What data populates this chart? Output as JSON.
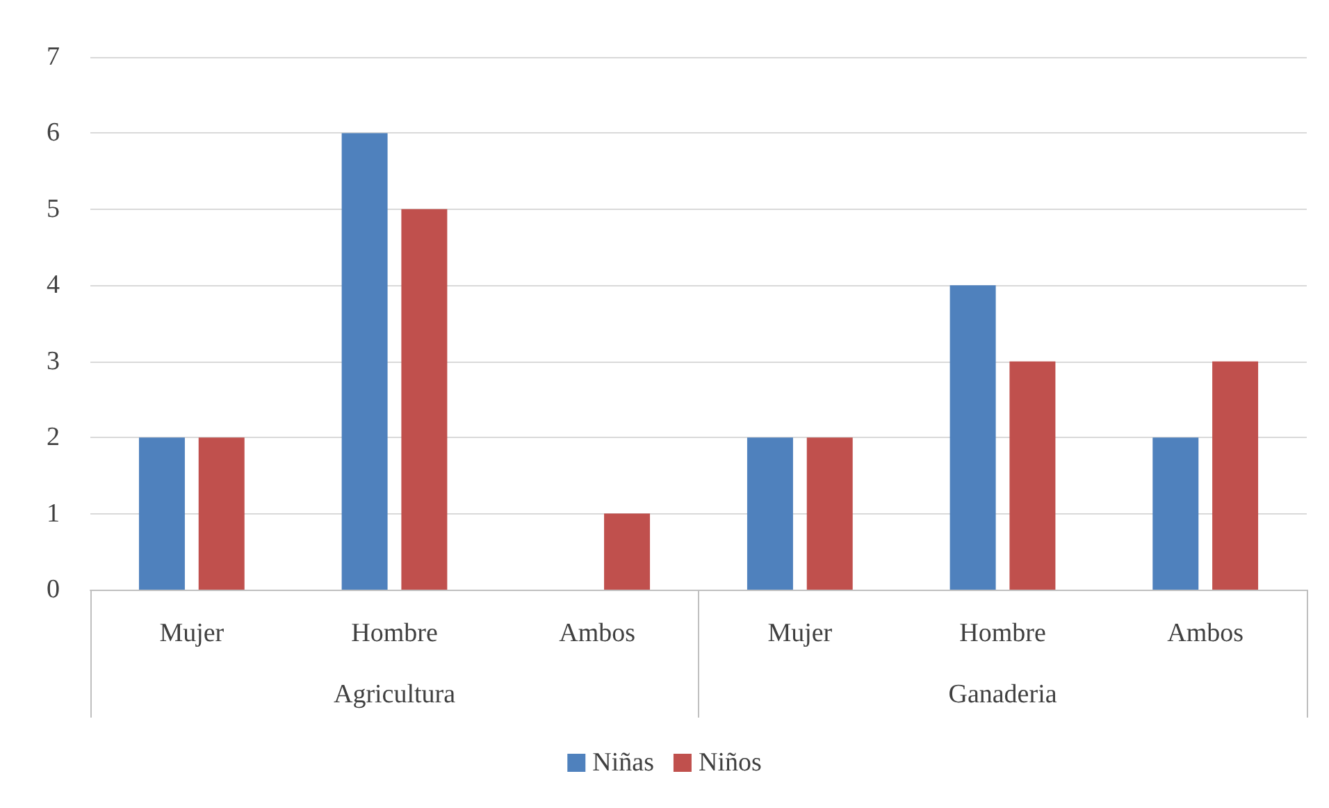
{
  "chart_data": {
    "type": "bar",
    "categories": [
      "Mujer",
      "Hombre",
      "Ambos",
      "Mujer",
      "Hombre",
      "Ambos"
    ],
    "annotations": [
      "Agricultura",
      "Ganaderia"
    ],
    "series": [
      {
        "name": "Niñas",
        "color": "#4f81bd",
        "values": [
          2,
          6,
          0,
          2,
          4,
          2
        ]
      },
      {
        "name": "Niños",
        "color": "#c0504d",
        "values": [
          2,
          5,
          1,
          2,
          3,
          3
        ]
      }
    ],
    "ylim": [
      0,
      7
    ],
    "yticks": [
      0,
      1,
      2,
      3,
      4,
      5,
      6,
      7
    ],
    "grid": "y",
    "legend": "bottom"
  }
}
